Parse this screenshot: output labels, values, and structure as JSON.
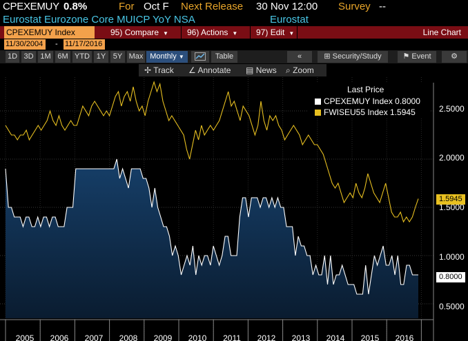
{
  "header": {
    "ticker": "CPEXEMUY",
    "change": "0.8%",
    "for_label": "For",
    "for_value": "Oct F",
    "next_release_label": "Next Release",
    "next_release_value": "30 Nov 12:00",
    "survey_label": "Survey",
    "survey_value": "--",
    "description": "Eurostat Eurozone Core MUICP YoY NSA",
    "source": "Eurostat"
  },
  "function_bar": {
    "security": "CPEXEMUY Index",
    "compare": {
      "num": "95)",
      "label": "Compare"
    },
    "actions": {
      "num": "96)",
      "label": "Actions"
    },
    "edit": {
      "num": "97)",
      "label": "Edit"
    },
    "view_label": "Line Chart"
  },
  "date_range": {
    "start": "11/30/2004",
    "dash": "-",
    "end": "11/17/2016"
  },
  "toolbar": {
    "periods": [
      "1D",
      "3D",
      "1M",
      "6M",
      "YTD",
      "1Y",
      "5Y",
      "Max"
    ],
    "frequency": "Monthly",
    "table_label": "Table",
    "security_study_label": "Security/Study",
    "event_label": "Event"
  },
  "annotation_bar": {
    "track": "Track",
    "annotate": "Annotate",
    "news": "News",
    "zoom": "Zoom"
  },
  "legend": {
    "title": "Last Price",
    "series": [
      {
        "name": "CPEXEMUY Index",
        "value": "0.8000",
        "color": "#ffffff"
      },
      {
        "name": "FWISEU55 Index",
        "value": "1.5945",
        "color": "#e8c020"
      }
    ]
  },
  "colors": {
    "accent_orange": "#f3a14b",
    "function_bar": "#7a0d14",
    "area_fill_top": "#13395f",
    "line_yellow": "#e8c020"
  },
  "chart_data": {
    "type": "line",
    "x_labels": [
      "2005",
      "2006",
      "2007",
      "2008",
      "2009",
      "2010",
      "2011",
      "2012",
      "2013",
      "2014",
      "2015",
      "2016"
    ],
    "ylim": [
      0.35,
      2.85
    ],
    "y_ticks": [
      "0.5000",
      "1.0000",
      "1.5000",
      "2.0000",
      "2.5000"
    ],
    "last_values": [
      "1.5945",
      "0.8000"
    ],
    "series": [
      {
        "name": "CPEXEMUY Index",
        "style": "area",
        "values": [
          1.9,
          1.5,
          1.5,
          1.4,
          1.4,
          1.4,
          1.3,
          1.4,
          1.4,
          1.3,
          1.3,
          1.4,
          1.3,
          1.4,
          1.4,
          1.3,
          1.4,
          1.4,
          1.3,
          1.3,
          1.3,
          1.5,
          1.5,
          1.5,
          1.9,
          1.9,
          1.9,
          1.9,
          1.9,
          1.9,
          1.9,
          1.9,
          1.9,
          1.9,
          1.9,
          1.9,
          1.9,
          1.9,
          2.0,
          1.8,
          1.9,
          1.8,
          1.7,
          1.9,
          1.9,
          1.9,
          1.9,
          1.8,
          1.8,
          1.7,
          1.5,
          1.7,
          1.5,
          1.4,
          1.3,
          1.3,
          1.2,
          1.0,
          1.1,
          1.0,
          0.8,
          0.9,
          1.0,
          0.9,
          1.1,
          0.8,
          1.0,
          0.9,
          1.0,
          1.0,
          0.9,
          1.1,
          1.0,
          0.9,
          1.0,
          1.2,
          1.2,
          1.0,
          1.0,
          1.0,
          1.4,
          1.6,
          1.6,
          1.4,
          1.6,
          1.6,
          1.6,
          1.5,
          1.6,
          1.6,
          1.5,
          1.6,
          1.5,
          1.6,
          1.5,
          1.5,
          1.3,
          1.3,
          1.3,
          1.0,
          1.2,
          1.1,
          1.1,
          1.0,
          1.0,
          0.8,
          0.9,
          0.8,
          0.8,
          1.0,
          0.7,
          1.0,
          0.7,
          0.8,
          0.8,
          0.9,
          0.8,
          0.7,
          0.7,
          0.7,
          0.6,
          0.6,
          0.6,
          0.9,
          0.6,
          0.8,
          1.0,
          0.9,
          1.0,
          1.1,
          0.9,
          0.9,
          1.0,
          0.8,
          1.0,
          0.7,
          0.7,
          0.9,
          0.9,
          0.8,
          0.8,
          0.8
        ],
        "color": "#ffffff"
      },
      {
        "name": "FWISEU55 Index",
        "style": "line",
        "values": [
          2.35,
          2.3,
          2.25,
          2.25,
          2.2,
          2.25,
          2.25,
          2.3,
          2.2,
          2.25,
          2.3,
          2.35,
          2.3,
          2.35,
          2.4,
          2.5,
          2.4,
          2.35,
          2.45,
          2.35,
          2.3,
          2.35,
          2.4,
          2.35,
          2.35,
          2.45,
          2.55,
          2.5,
          2.45,
          2.55,
          2.6,
          2.55,
          2.5,
          2.45,
          2.5,
          2.45,
          2.55,
          2.65,
          2.7,
          2.55,
          2.65,
          2.7,
          2.6,
          2.75,
          2.6,
          2.5,
          2.55,
          2.45,
          2.6,
          2.7,
          2.8,
          2.7,
          2.78,
          2.6,
          2.5,
          2.4,
          2.45,
          2.4,
          2.35,
          2.3,
          2.25,
          2.1,
          2.0,
          2.15,
          2.3,
          2.2,
          2.35,
          2.25,
          2.3,
          2.35,
          2.3,
          2.35,
          2.4,
          2.5,
          2.6,
          2.7,
          2.55,
          2.6,
          2.5,
          2.4,
          2.55,
          2.5,
          2.45,
          2.35,
          2.25,
          2.35,
          2.6,
          2.4,
          2.3,
          2.45,
          2.4,
          2.45,
          2.35,
          2.3,
          2.2,
          2.25,
          2.3,
          2.35,
          2.3,
          2.25,
          2.15,
          2.2,
          2.25,
          2.2,
          2.15,
          2.15,
          2.1,
          2.05,
          1.95,
          1.85,
          1.75,
          1.7,
          1.75,
          1.65,
          1.55,
          1.6,
          1.65,
          1.6,
          1.75,
          1.65,
          1.6,
          1.7,
          1.85,
          1.75,
          1.65,
          1.6,
          1.55,
          1.65,
          1.75,
          1.6,
          1.45,
          1.4,
          1.4,
          1.45,
          1.35,
          1.4,
          1.35,
          1.4,
          1.5,
          1.59
        ],
        "color": "#e8c020"
      }
    ],
    "grid": true,
    "legend_position": "top-right"
  }
}
